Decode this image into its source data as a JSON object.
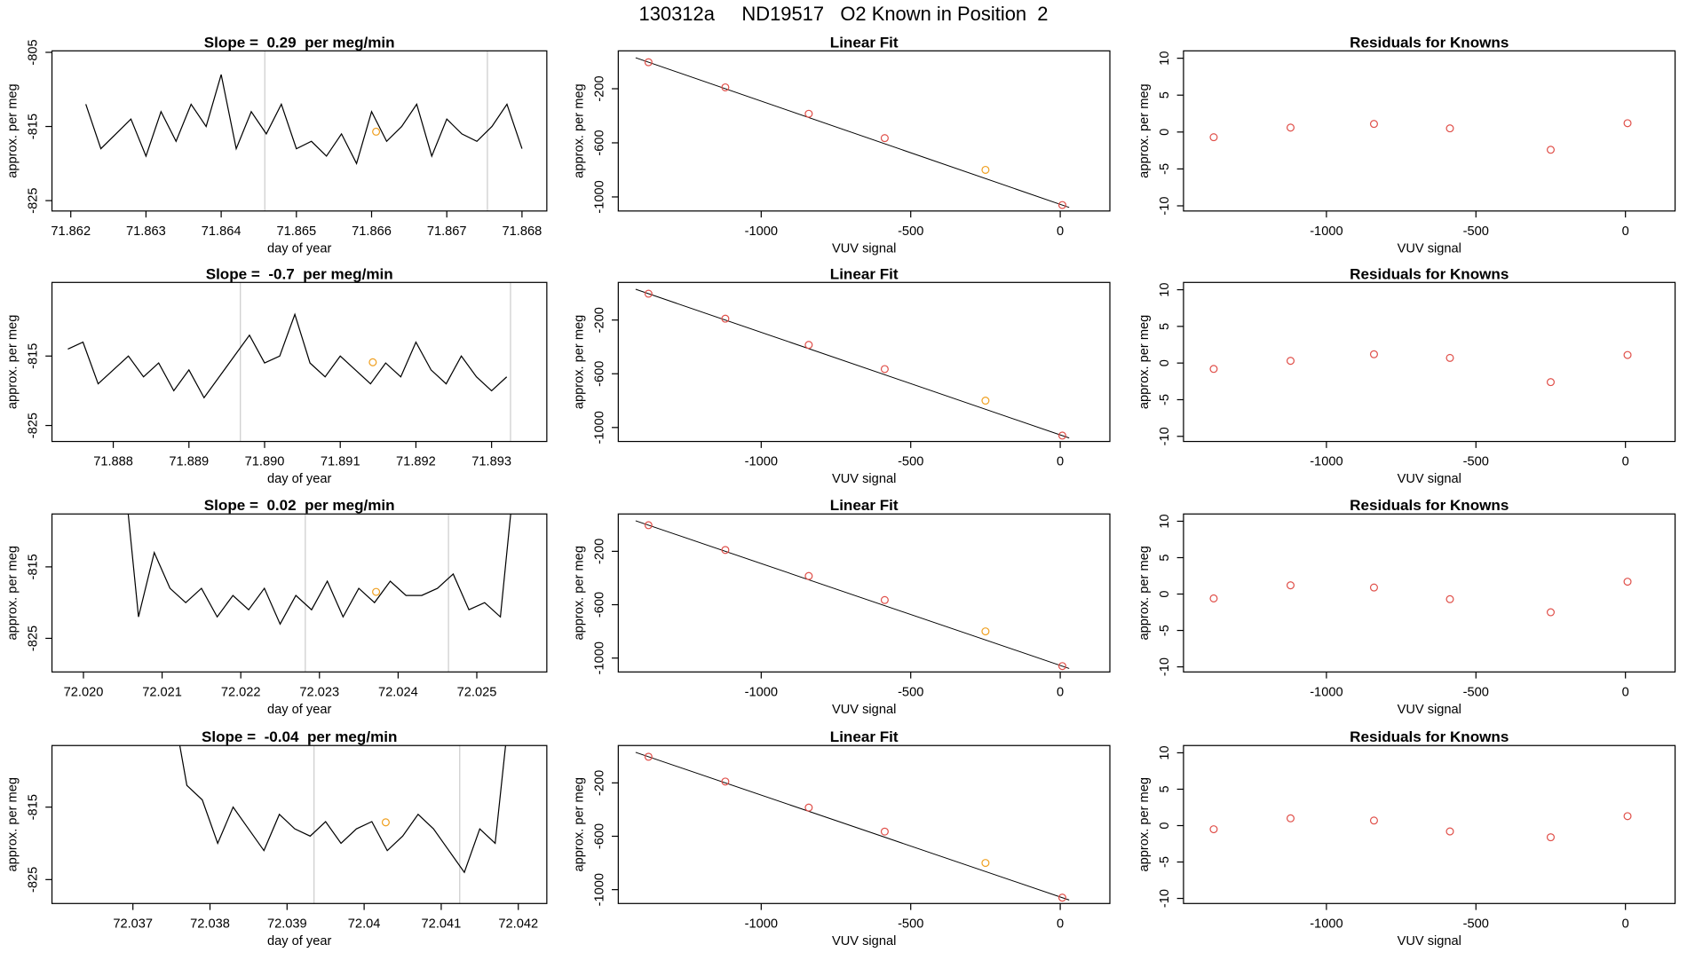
{
  "title": "130312a     ND19517   O2 Known in Position  2",
  "chart_data": [
    {
      "type": "line",
      "title": "Slope =  0.29  per meg/min",
      "xlabel": "day of year",
      "ylabel": "approx. per meg",
      "color": "#000000",
      "x": [
        71.8622,
        71.8624,
        71.8626,
        71.8628,
        71.863,
        71.8632,
        71.8634,
        71.8636,
        71.8638,
        71.864,
        71.8642,
        71.8644,
        71.8646,
        71.8648,
        71.865,
        71.8652,
        71.8654,
        71.8656,
        71.8658,
        71.866,
        71.8662,
        71.8664,
        71.8666,
        71.8668,
        71.867,
        71.8672,
        71.8674,
        71.8676,
        71.8678,
        71.868
      ],
      "values": [
        -812,
        -818,
        -816,
        -814,
        -819,
        -813,
        -817,
        -812,
        -815,
        -808,
        -818,
        -813,
        -816,
        -812,
        -818,
        -817,
        -819,
        -816,
        -820,
        -813,
        -817,
        -815,
        -812,
        -819,
        -814,
        -816,
        -817,
        -815,
        -812,
        -818
      ],
      "xlim": [
        71.86175,
        71.86833
      ],
      "ylim": [
        -826.4,
        -804.8
      ],
      "xticks": [
        71.862,
        71.863,
        71.864,
        71.865,
        71.866,
        71.867,
        71.868
      ],
      "yticks": [
        -805,
        -815,
        -825
      ],
      "vlines": [
        71.86458,
        71.86754
      ],
      "vline_color": "#cccccc",
      "highlight": {
        "x": 71.86606,
        "y": -815.7,
        "color": "#f0a020"
      }
    },
    {
      "type": "scatter",
      "title": "Linear Fit",
      "xlabel": "VUV signal",
      "ylabel": "approx. per meg",
      "color": "#e0504a",
      "x": [
        -1377,
        -1120,
        -841,
        -587,
        -250,
        7
      ],
      "values": [
        -4,
        -190,
        -385,
        -565,
        -800,
        -1060
      ],
      "highlight_index": 4,
      "highlight_color": "#f0a020",
      "fit_line": {
        "x": [
          -1420,
          30
        ],
        "y": [
          29,
          -1078
        ]
      },
      "xlim": [
        -1478,
        166
      ],
      "ylim": [
        -1104,
        80
      ],
      "xticks": [
        -1000,
        -500,
        0
      ],
      "yticks": [
        -200,
        -600,
        -1000
      ]
    },
    {
      "type": "scatter",
      "title": "Residuals for Knowns",
      "xlabel": "VUV signal",
      "ylabel": "approx. per meg",
      "color": "#e0504a",
      "x": [
        -1377,
        -1120,
        -841,
        -587,
        -250,
        7
      ],
      "values": [
        -0.7,
        0.6,
        1.1,
        0.5,
        -2.4,
        1.2
      ],
      "xlim": [
        -1478,
        166
      ],
      "ylim": [
        -10.7,
        11
      ],
      "xticks": [
        -1000,
        -500,
        0
      ],
      "yticks": [
        -10,
        -5,
        0,
        5,
        10
      ]
    },
    {
      "type": "line",
      "title": "Slope =  -0.7  per meg/min",
      "xlabel": "day of year",
      "ylabel": "approx. per meg",
      "color": "#000000",
      "x": [
        71.8874,
        71.8876,
        71.8878,
        71.888,
        71.8882,
        71.8884,
        71.8886,
        71.8888,
        71.889,
        71.8892,
        71.8894,
        71.8896,
        71.8898,
        71.89,
        71.8902,
        71.8904,
        71.8906,
        71.8908,
        71.891,
        71.8912,
        71.8914,
        71.8916,
        71.8918,
        71.892,
        71.8922,
        71.8924,
        71.8926,
        71.8928,
        71.893,
        71.8932
      ],
      "values": [
        -814,
        -813,
        -819,
        -817,
        -815,
        -818,
        -816,
        -820,
        -817,
        -821,
        -818,
        -815,
        -812,
        -816,
        -815,
        -809,
        -816,
        -818,
        -815,
        -817,
        -819,
        -816,
        -818,
        -813,
        -817,
        -819,
        -815,
        -818,
        -820,
        -818
      ],
      "xlim": [
        71.88719,
        71.89373
      ],
      "ylim": [
        -827.3,
        -804.4
      ],
      "xticks": [
        71.888,
        71.889,
        {
          "value": 71.89,
          "label": "71.890"
        },
        71.891,
        71.892,
        71.893
      ],
      "yticks": [
        -815,
        -825
      ],
      "vlines": [
        71.88968,
        71.89325
      ],
      "vline_color": "#cccccc",
      "highlight": {
        "x": 71.89143,
        "y": -815.9,
        "color": "#f0a020"
      }
    },
    {
      "type": "scatter",
      "title": "Linear Fit",
      "xlabel": "VUV signal",
      "ylabel": "approx. per meg",
      "color": "#e0504a",
      "x": [
        -1377,
        -1120,
        -841,
        -587,
        -250,
        7
      ],
      "values": [
        -4,
        -190,
        -385,
        -565,
        -800,
        -1060
      ],
      "highlight_index": 4,
      "highlight_color": "#f0a020",
      "fit_line": {
        "x": [
          -1420,
          30
        ],
        "y": [
          29,
          -1078
        ]
      },
      "xlim": [
        -1478,
        166
      ],
      "ylim": [
        -1104,
        80
      ],
      "xticks": [
        -1000,
        -500,
        0
      ],
      "yticks": [
        -200,
        -600,
        -1000
      ]
    },
    {
      "type": "scatter",
      "title": "Residuals for Knowns",
      "xlabel": "VUV signal",
      "ylabel": "approx. per meg",
      "color": "#e0504a",
      "x": [
        -1377,
        -1120,
        -841,
        -587,
        -250,
        7
      ],
      "values": [
        -0.8,
        0.3,
        1.2,
        0.7,
        -2.6,
        1.1
      ],
      "xlim": [
        -1478,
        166
      ],
      "ylim": [
        -10.7,
        11
      ],
      "xticks": [
        -1000,
        -500,
        0
      ],
      "yticks": [
        -10,
        -5,
        0,
        5,
        10
      ]
    },
    {
      "type": "line",
      "title": "Slope =  0.02  per meg/min",
      "xlabel": "day of year",
      "ylabel": "approx. per meg",
      "color": "#000000",
      "x": [
        72.0205,
        72.0207,
        72.0209,
        72.0211,
        72.0213,
        72.0215,
        72.0217,
        72.0219,
        72.0221,
        72.0223,
        72.0225,
        72.0227,
        72.0229,
        72.0231,
        72.0233,
        72.0235,
        72.0237,
        72.0239,
        72.0241,
        72.0243,
        72.0245,
        72.0247,
        72.0249,
        72.0251,
        72.0253,
        72.0255
      ],
      "values": [
        -800,
        -822,
        -813,
        -818,
        -820,
        -818,
        -822,
        -819,
        -821,
        -818,
        -823,
        -819,
        -821,
        -817,
        -822,
        -818,
        -820,
        -817,
        -819,
        -819,
        -818,
        -816,
        -821,
        -820,
        -822,
        -800
      ],
      "xlim": [
        72.0196,
        72.02589
      ],
      "ylim": [
        -829.7,
        -807.6
      ],
      "xticks": [
        {
          "value": 72.02,
          "label": "72.020"
        },
        72.021,
        72.022,
        72.023,
        72.024,
        72.025
      ],
      "yticks": [
        -815,
        -825
      ],
      "vlines": [
        72.02282,
        72.02464
      ],
      "vline_color": "#cccccc",
      "highlight": {
        "x": 72.02372,
        "y": -818.5,
        "color": "#f0a020"
      }
    },
    {
      "type": "scatter",
      "title": "Linear Fit",
      "xlabel": "VUV signal",
      "ylabel": "approx. per meg",
      "color": "#e0504a",
      "x": [
        -1377,
        -1120,
        -841,
        -587,
        -250,
        7
      ],
      "values": [
        -4,
        -190,
        -385,
        -565,
        -800,
        -1060
      ],
      "highlight_index": 4,
      "highlight_color": "#f0a020",
      "fit_line": {
        "x": [
          -1420,
          30
        ],
        "y": [
          29,
          -1078
        ]
      },
      "xlim": [
        -1478,
        166
      ],
      "ylim": [
        -1104,
        80
      ],
      "xticks": [
        -1000,
        -500,
        0
      ],
      "yticks": [
        -200,
        -600,
        -1000
      ]
    },
    {
      "type": "scatter",
      "title": "Residuals for Knowns",
      "xlabel": "VUV signal",
      "ylabel": "approx. per meg",
      "color": "#e0504a",
      "x": [
        -1377,
        -1120,
        -841,
        -587,
        -250,
        7
      ],
      "values": [
        -0.6,
        1.2,
        0.9,
        -0.7,
        -2.5,
        1.7
      ],
      "xlim": [
        -1478,
        166
      ],
      "ylim": [
        -10.7,
        11
      ],
      "xticks": [
        -1000,
        -500,
        0
      ],
      "yticks": [
        -10,
        -5,
        0,
        5,
        10
      ]
    },
    {
      "type": "line",
      "title": "Slope =  -0.04  per meg/min",
      "xlabel": "day of year",
      "ylabel": "approx. per meg",
      "color": "#000000",
      "x": [
        72.0375,
        72.0377,
        72.0379,
        72.0381,
        72.0383,
        72.0385,
        72.0387,
        72.0389,
        72.0391,
        72.0393,
        72.0395,
        72.0397,
        72.0399,
        72.0401,
        72.0403,
        72.0405,
        72.0407,
        72.0409,
        72.0411,
        72.0413,
        72.0415,
        72.0417,
        72.0419
      ],
      "values": [
        -800,
        -812,
        -814,
        -820,
        -815,
        -818,
        -821,
        -816,
        -818,
        -819,
        -817,
        -820,
        -818,
        -817,
        -821,
        -819,
        -816,
        -818,
        -821,
        -824,
        -818,
        -820,
        -800
      ],
      "xlim": [
        72.03595,
        72.04237
      ],
      "ylim": [
        -828.3,
        -806.5
      ],
      "xticks": [
        72.037,
        72.038,
        72.039,
        72.04,
        72.041,
        72.042
      ],
      "yticks": [
        -815,
        -825
      ],
      "vlines": [
        72.03935,
        72.04124
      ],
      "vline_color": "#cccccc",
      "highlight": {
        "x": 72.04028,
        "y": -817.1,
        "color": "#f0a020"
      }
    },
    {
      "type": "scatter",
      "title": "Linear Fit",
      "xlabel": "VUV signal",
      "ylabel": "approx. per meg",
      "color": "#e0504a",
      "x": [
        -1377,
        -1120,
        -841,
        -587,
        -250,
        7
      ],
      "values": [
        -4,
        -190,
        -385,
        -565,
        -800,
        -1060
      ],
      "highlight_index": 4,
      "highlight_color": "#f0a020",
      "fit_line": {
        "x": [
          -1420,
          30
        ],
        "y": [
          29,
          -1078
        ]
      },
      "xlim": [
        -1478,
        166
      ],
      "ylim": [
        -1104,
        80
      ],
      "xticks": [
        -1000,
        -500,
        0
      ],
      "yticks": [
        -200,
        -600,
        -1000
      ]
    },
    {
      "type": "scatter",
      "title": "Residuals for Knowns",
      "xlabel": "VUV signal",
      "ylabel": "approx. per meg",
      "color": "#e0504a",
      "x": [
        -1377,
        -1120,
        -841,
        -587,
        -250,
        7
      ],
      "values": [
        -0.5,
        1.0,
        0.7,
        -0.8,
        -1.6,
        1.3
      ],
      "xlim": [
        -1478,
        166
      ],
      "ylim": [
        -10.7,
        11
      ],
      "xticks": [
        -1000,
        -500,
        0
      ],
      "yticks": [
        -10,
        -5,
        0,
        5,
        10
      ]
    }
  ]
}
